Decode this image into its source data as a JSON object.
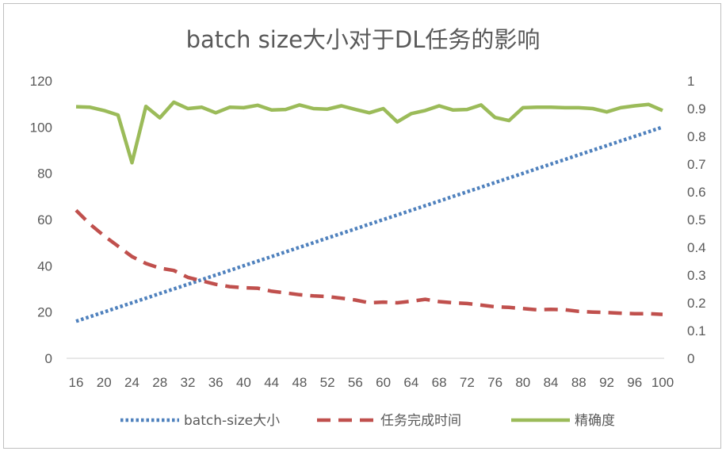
{
  "chart_data": {
    "type": "line",
    "title": "batch size大小对于DL任务的影响",
    "xlabel": "",
    "ylabel": "",
    "x_ticks": [
      "16",
      "20",
      "24",
      "28",
      "32",
      "36",
      "40",
      "44",
      "48",
      "52",
      "56",
      "60",
      "64",
      "68",
      "72",
      "76",
      "80",
      "84",
      "88",
      "92",
      "96",
      "100"
    ],
    "y_left_ticks": [
      "0",
      "20",
      "40",
      "60",
      "80",
      "100",
      "120"
    ],
    "y_right_ticks": [
      "0",
      "0.1",
      "0.2",
      "0.3",
      "0.4",
      "0.5",
      "0.6",
      "0.7",
      "0.8",
      "0.9",
      "1"
    ],
    "ylim_left": [
      0,
      120
    ],
    "ylim_right": [
      0,
      1
    ],
    "xlim": [
      16,
      100
    ],
    "grid": false,
    "legend_position": "bottom",
    "x": [
      16,
      18,
      20,
      22,
      24,
      26,
      28,
      30,
      32,
      34,
      36,
      38,
      40,
      42,
      44,
      46,
      48,
      50,
      52,
      54,
      56,
      58,
      60,
      62,
      64,
      66,
      68,
      70,
      72,
      74,
      76,
      78,
      80,
      82,
      84,
      86,
      88,
      90,
      92,
      94,
      96,
      98,
      100
    ],
    "series": [
      {
        "name": "batch-size大小",
        "axis": "left",
        "style": "dotted",
        "color": "#4f81bd",
        "values": [
          16,
          18,
          20,
          22,
          24,
          26,
          28,
          30,
          32,
          34,
          36,
          38,
          40,
          42,
          44,
          46,
          48,
          50,
          52,
          54,
          56,
          58,
          60,
          62,
          64,
          66,
          68,
          70,
          72,
          74,
          76,
          78,
          80,
          82,
          84,
          86,
          88,
          90,
          92,
          94,
          96,
          98,
          100
        ]
      },
      {
        "name": "任务完成时间",
        "axis": "left",
        "style": "dashed",
        "color": "#c0504d",
        "values": [
          64,
          58,
          53,
          48.5,
          44,
          41,
          39,
          38,
          35,
          33.5,
          32,
          31,
          30.5,
          30.3,
          29,
          28.3,
          27.5,
          27,
          26.7,
          26,
          25.2,
          24,
          24.3,
          24,
          24.7,
          25.5,
          24.5,
          24,
          23.7,
          23,
          22.3,
          22,
          21.5,
          21,
          21.2,
          21,
          20.3,
          20,
          19.8,
          19.5,
          19.3,
          19.3,
          19
        ]
      },
      {
        "name": "精确度",
        "axis": "right",
        "style": "solid",
        "color": "#9bbb59",
        "values": [
          0.907,
          0.905,
          0.893,
          0.877,
          0.705,
          0.908,
          0.867,
          0.923,
          0.9,
          0.905,
          0.885,
          0.905,
          0.903,
          0.912,
          0.895,
          0.897,
          0.913,
          0.9,
          0.898,
          0.91,
          0.897,
          0.885,
          0.9,
          0.852,
          0.882,
          0.893,
          0.91,
          0.895,
          0.897,
          0.913,
          0.868,
          0.857,
          0.903,
          0.905,
          0.905,
          0.903,
          0.903,
          0.9,
          0.888,
          0.903,
          0.91,
          0.915,
          0.893
        ]
      }
    ]
  }
}
